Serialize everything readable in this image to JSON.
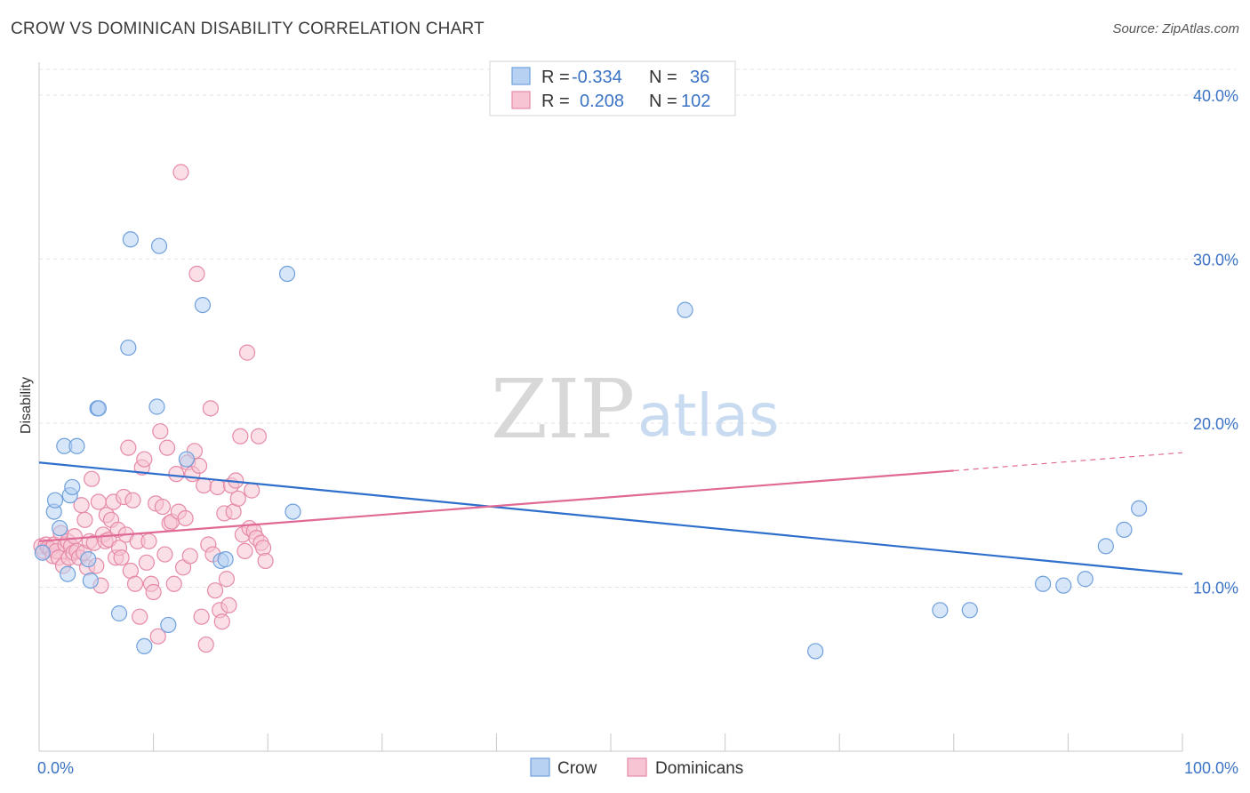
{
  "header": {
    "title": "CROW VS DOMINICAN DISABILITY CORRELATION CHART",
    "source": "Source: ZipAtlas.com"
  },
  "watermark": {
    "zip": "ZIP",
    "atlas": "atlas"
  },
  "colors": {
    "crow": "#6fa0dc",
    "crow_fill": "#b7d1f2",
    "crow_line": "#2f6fcc",
    "dominicans": "#e68aa7",
    "dominicans_fill": "#f6c4d3",
    "dominicans_line": "#e06a95",
    "grid": "#e3e3e3",
    "tick_label": "#3b73c5"
  },
  "legend": {
    "rows": [
      {
        "r_label": "R =",
        "r_value": "-0.334",
        "n_label": "N =",
        "n_value": "36"
      },
      {
        "r_label": "R =",
        "r_value": "0.208",
        "n_label": "N =",
        "n_value": "102"
      }
    ]
  },
  "chart_data": {
    "type": "scatter",
    "xlabel": "",
    "ylabel": "Disability",
    "xlim": [
      0,
      100
    ],
    "ylim": [
      0,
      42
    ],
    "x_tick_labels": [
      {
        "value": 0,
        "label": "0.0%"
      },
      {
        "value": 100,
        "label": "100.0%"
      }
    ],
    "y_tick_labels": [
      {
        "value": 10,
        "label": "10.0%"
      },
      {
        "value": 20,
        "label": "20.0%"
      },
      {
        "value": 30,
        "label": "30.0%"
      },
      {
        "value": 40,
        "label": "40.0%"
      }
    ],
    "x_minor_ticks": [
      0,
      10,
      20,
      30,
      40,
      50,
      60,
      70,
      80,
      90,
      100
    ],
    "grid": true,
    "legend_position": "top-center",
    "series": [
      {
        "name": "Crow",
        "color": "#6fa0dc",
        "trend": {
          "x0": 0,
          "y0": 17.6,
          "x1": 100,
          "y1": 10.8
        },
        "points": [
          [
            0.3,
            12.1
          ],
          [
            1.3,
            14.6
          ],
          [
            1.4,
            15.3
          ],
          [
            1.8,
            13.6
          ],
          [
            2.2,
            18.6
          ],
          [
            2.5,
            10.8
          ],
          [
            2.7,
            15.6
          ],
          [
            2.9,
            16.1
          ],
          [
            3.3,
            18.6
          ],
          [
            4.3,
            11.7
          ],
          [
            4.5,
            10.4
          ],
          [
            5.1,
            20.9
          ],
          [
            5.2,
            20.9
          ],
          [
            7.0,
            8.4
          ],
          [
            7.8,
            24.6
          ],
          [
            8.0,
            31.2
          ],
          [
            9.2,
            6.4
          ],
          [
            10.3,
            21.0
          ],
          [
            10.5,
            30.8
          ],
          [
            11.3,
            7.7
          ],
          [
            12.9,
            17.8
          ],
          [
            14.3,
            27.2
          ],
          [
            15.9,
            11.6
          ],
          [
            16.3,
            11.7
          ],
          [
            21.7,
            29.1
          ],
          [
            22.2,
            14.6
          ],
          [
            56.5,
            26.9
          ],
          [
            67.9,
            6.1
          ],
          [
            78.8,
            8.6
          ],
          [
            81.4,
            8.6
          ],
          [
            87.8,
            10.2
          ],
          [
            89.6,
            10.1
          ],
          [
            91.5,
            10.5
          ],
          [
            93.3,
            12.5
          ],
          [
            94.9,
            13.5
          ],
          [
            96.2,
            14.8
          ]
        ]
      },
      {
        "name": "Dominicans",
        "color": "#e68aa7",
        "trend": {
          "x0": 0,
          "y0": 12.8,
          "x1": 80,
          "y1": 17.1,
          "dash_to_x": 100,
          "dash_to_y": 18.2
        },
        "points": [
          [
            0.2,
            12.5
          ],
          [
            0.4,
            12.2
          ],
          [
            0.6,
            12.6
          ],
          [
            0.8,
            12.4
          ],
          [
            1.0,
            12.3
          ],
          [
            1.2,
            11.9
          ],
          [
            1.3,
            12.6
          ],
          [
            1.5,
            12.2
          ],
          [
            1.7,
            11.8
          ],
          [
            1.9,
            13.3
          ],
          [
            2.1,
            11.3
          ],
          [
            2.3,
            12.6
          ],
          [
            2.5,
            12.8
          ],
          [
            2.6,
            11.8
          ],
          [
            2.8,
            12.5
          ],
          [
            3.0,
            12.1
          ],
          [
            3.1,
            13.1
          ],
          [
            3.3,
            12.2
          ],
          [
            3.5,
            11.8
          ],
          [
            3.7,
            15.0
          ],
          [
            3.9,
            12.1
          ],
          [
            4.0,
            14.1
          ],
          [
            4.2,
            11.2
          ],
          [
            4.4,
            12.8
          ],
          [
            4.6,
            16.6
          ],
          [
            4.8,
            12.7
          ],
          [
            5.0,
            11.3
          ],
          [
            5.2,
            15.2
          ],
          [
            5.4,
            10.1
          ],
          [
            5.6,
            13.2
          ],
          [
            5.8,
            12.8
          ],
          [
            5.9,
            14.4
          ],
          [
            6.1,
            12.9
          ],
          [
            6.3,
            14.1
          ],
          [
            6.5,
            15.2
          ],
          [
            6.7,
            11.8
          ],
          [
            6.9,
            13.5
          ],
          [
            7.0,
            12.4
          ],
          [
            7.2,
            11.8
          ],
          [
            7.4,
            15.5
          ],
          [
            7.6,
            13.2
          ],
          [
            7.8,
            18.5
          ],
          [
            8.0,
            11.0
          ],
          [
            8.2,
            15.3
          ],
          [
            8.4,
            10.2
          ],
          [
            8.6,
            12.8
          ],
          [
            8.8,
            8.2
          ],
          [
            9.0,
            17.3
          ],
          [
            9.2,
            17.8
          ],
          [
            9.4,
            11.5
          ],
          [
            9.6,
            12.8
          ],
          [
            9.8,
            10.2
          ],
          [
            10.0,
            9.7
          ],
          [
            10.2,
            15.1
          ],
          [
            10.4,
            7.0
          ],
          [
            10.6,
            19.5
          ],
          [
            10.8,
            14.9
          ],
          [
            11.0,
            12.0
          ],
          [
            11.2,
            18.5
          ],
          [
            11.4,
            13.9
          ],
          [
            11.6,
            14.0
          ],
          [
            11.8,
            10.2
          ],
          [
            12.0,
            16.9
          ],
          [
            12.2,
            14.6
          ],
          [
            12.4,
            35.3
          ],
          [
            12.6,
            11.2
          ],
          [
            12.8,
            14.2
          ],
          [
            13.0,
            17.6
          ],
          [
            13.2,
            11.9
          ],
          [
            13.4,
            16.9
          ],
          [
            13.6,
            18.3
          ],
          [
            13.8,
            29.1
          ],
          [
            14.0,
            17.4
          ],
          [
            14.2,
            8.2
          ],
          [
            14.4,
            16.2
          ],
          [
            14.6,
            6.5
          ],
          [
            14.8,
            12.6
          ],
          [
            15.0,
            20.9
          ],
          [
            15.2,
            12.0
          ],
          [
            15.4,
            9.8
          ],
          [
            15.6,
            16.1
          ],
          [
            15.8,
            8.6
          ],
          [
            16.0,
            7.9
          ],
          [
            16.2,
            14.5
          ],
          [
            16.4,
            10.5
          ],
          [
            16.6,
            8.9
          ],
          [
            16.8,
            16.2
          ],
          [
            17.0,
            14.6
          ],
          [
            17.2,
            16.5
          ],
          [
            17.4,
            15.4
          ],
          [
            17.6,
            19.2
          ],
          [
            17.8,
            13.2
          ],
          [
            18.0,
            12.2
          ],
          [
            18.2,
            24.3
          ],
          [
            18.4,
            13.6
          ],
          [
            18.6,
            15.9
          ],
          [
            18.8,
            13.4
          ],
          [
            19.0,
            13.0
          ],
          [
            19.2,
            19.2
          ],
          [
            19.4,
            12.7
          ],
          [
            19.6,
            12.4
          ],
          [
            19.8,
            11.6
          ]
        ]
      }
    ]
  },
  "bottom_legend": {
    "items": [
      {
        "label": "Crow"
      },
      {
        "label": "Dominicans"
      }
    ]
  }
}
